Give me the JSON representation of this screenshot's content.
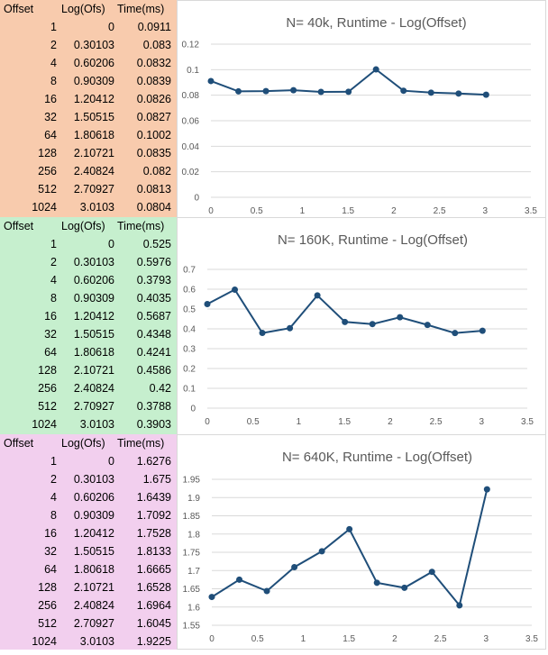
{
  "panels": [
    {
      "bg": "#f8cbad",
      "headers": [
        "Offset",
        "Log(Ofs)",
        "Time(ms)"
      ],
      "rows": [
        [
          "1",
          "0",
          "0.0911"
        ],
        [
          "2",
          "0.30103",
          "0.083"
        ],
        [
          "4",
          "0.60206",
          "0.0832"
        ],
        [
          "8",
          "0.90309",
          "0.0839"
        ],
        [
          "16",
          "1.20412",
          "0.0826"
        ],
        [
          "32",
          "1.50515",
          "0.0827"
        ],
        [
          "64",
          "1.80618",
          "0.1002"
        ],
        [
          "128",
          "2.10721",
          "0.0835"
        ],
        [
          "256",
          "2.40824",
          "0.082"
        ],
        [
          "512",
          "2.70927",
          "0.0813"
        ],
        [
          "1024",
          "3.0103",
          "0.0804"
        ]
      ]
    },
    {
      "bg": "#c6efce",
      "headers": [
        "Offset",
        "Log(Ofs)",
        "Time(ms)"
      ],
      "rows": [
        [
          "1",
          "0",
          "0.525"
        ],
        [
          "2",
          "0.30103",
          "0.5976"
        ],
        [
          "4",
          "0.60206",
          "0.3793"
        ],
        [
          "8",
          "0.90309",
          "0.4035"
        ],
        [
          "16",
          "1.20412",
          "0.5687"
        ],
        [
          "32",
          "1.50515",
          "0.4348"
        ],
        [
          "64",
          "1.80618",
          "0.4241"
        ],
        [
          "128",
          "2.10721",
          "0.4586"
        ],
        [
          "256",
          "2.40824",
          "0.42"
        ],
        [
          "512",
          "2.70927",
          "0.3788"
        ],
        [
          "1024",
          "3.0103",
          "0.3903"
        ]
      ]
    },
    {
      "bg": "#f2cfee",
      "headers": [
        "Offset",
        "Log(Ofs)",
        "Time(ms)"
      ],
      "rows": [
        [
          "1",
          "0",
          "1.6276"
        ],
        [
          "2",
          "0.30103",
          "1.675"
        ],
        [
          "4",
          "0.60206",
          "1.6439"
        ],
        [
          "8",
          "0.90309",
          "1.7092"
        ],
        [
          "16",
          "1.20412",
          "1.7528"
        ],
        [
          "32",
          "1.50515",
          "1.8133"
        ],
        [
          "64",
          "1.80618",
          "1.6665"
        ],
        [
          "128",
          "2.10721",
          "1.6528"
        ],
        [
          "256",
          "2.40824",
          "1.6964"
        ],
        [
          "512",
          "2.70927",
          "1.6045"
        ],
        [
          "1024",
          "3.0103",
          "1.9225"
        ]
      ]
    }
  ],
  "chart_data": [
    {
      "type": "scatter",
      "title": "N= 40k, Runtime - Log(Offset)",
      "x": [
        0,
        0.30103,
        0.60206,
        0.90309,
        1.20412,
        1.50515,
        1.80618,
        2.10721,
        2.40824,
        2.70927,
        3.0103
      ],
      "y": [
        0.0911,
        0.083,
        0.0832,
        0.0839,
        0.0826,
        0.0827,
        0.1002,
        0.0835,
        0.082,
        0.0813,
        0.0804
      ],
      "xlim": [
        0,
        3.5
      ],
      "ylim": [
        0,
        0.12
      ],
      "xticks": [
        "0",
        "0.5",
        "1",
        "1.5",
        "2",
        "2.5",
        "3",
        "3.5"
      ],
      "yticks": [
        "0",
        "0.02",
        "0.04",
        "0.06",
        "0.08",
        "0.1",
        "0.12"
      ],
      "xlabel": "",
      "ylabel": "",
      "line_color": "#1f4e79",
      "grid": true
    },
    {
      "type": "scatter",
      "title": "N= 160K, Runtime - Log(Offset)",
      "x": [
        0,
        0.30103,
        0.60206,
        0.90309,
        1.20412,
        1.50515,
        1.80618,
        2.10721,
        2.40824,
        2.70927,
        3.0103
      ],
      "y": [
        0.525,
        0.5976,
        0.3793,
        0.4035,
        0.5687,
        0.4348,
        0.4241,
        0.4586,
        0.42,
        0.3788,
        0.3903
      ],
      "xlim": [
        0,
        3.5
      ],
      "ylim": [
        0,
        0.7
      ],
      "xticks": [
        "0",
        "0.5",
        "1",
        "1.5",
        "2",
        "2.5",
        "3",
        "3.5"
      ],
      "yticks": [
        "0",
        "0.1",
        "0.2",
        "0.3",
        "0.4",
        "0.5",
        "0.6",
        "0.7"
      ],
      "xlabel": "",
      "ylabel": "",
      "line_color": "#1f4e79",
      "grid": true
    },
    {
      "type": "scatter",
      "title": "N= 640K, Runtime - Log(Offset)",
      "x": [
        0,
        0.30103,
        0.60206,
        0.90309,
        1.20412,
        1.50515,
        1.80618,
        2.10721,
        2.40824,
        2.70927,
        3.0103
      ],
      "y": [
        1.6276,
        1.675,
        1.6439,
        1.7092,
        1.7528,
        1.8133,
        1.6665,
        1.6528,
        1.6964,
        1.6045,
        1.9225
      ],
      "xlim": [
        0,
        3.5
      ],
      "ylim": [
        1.55,
        1.95
      ],
      "xticks": [
        "0",
        "0.5",
        "1",
        "1.5",
        "2",
        "2.5",
        "3",
        "3.5"
      ],
      "yticks": [
        "1.55",
        "1.6",
        "1.65",
        "1.7",
        "1.75",
        "1.8",
        "1.85",
        "1.9",
        "1.95"
      ],
      "xlabel": "",
      "ylabel": "",
      "line_color": "#1f4e79",
      "grid": true
    }
  ]
}
